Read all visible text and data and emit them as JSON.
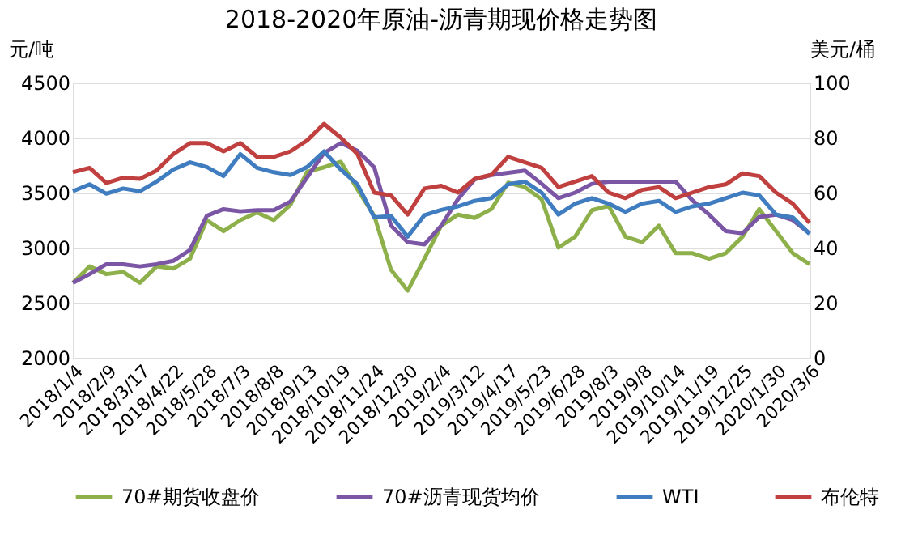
{
  "chart_data": {
    "type": "line",
    "title": "2018-2020年原油-沥青期现价格走势图",
    "ylabel": "元/吨",
    "y2label": "美元/桶",
    "x": [
      "2018-01-04",
      "2018-01-22",
      "2018-02-09",
      "2018-02-27",
      "2018-03-17",
      "2018-04-04",
      "2018-04-22",
      "2018-05-10",
      "2018-05-28",
      "2018-06-15",
      "2018-07-03",
      "2018-07-21",
      "2018-08-08",
      "2018-08-26",
      "2018-09-13",
      "2018-10-01",
      "2018-10-19",
      "2018-11-06",
      "2018-11-24",
      "2018-12-12",
      "2018-12-30",
      "2019-01-17",
      "2019-02-04",
      "2019-02-22",
      "2019-03-12",
      "2019-03-30",
      "2019-04-17",
      "2019-05-05",
      "2019-05-23",
      "2019-06-10",
      "2019-06-28",
      "2019-07-16",
      "2019-08-03",
      "2019-08-21",
      "2019-09-08",
      "2019-09-26",
      "2019-10-14",
      "2019-11-01",
      "2019-11-19",
      "2019-12-07",
      "2019-12-25",
      "2020-01-12",
      "2020-01-30",
      "2020-02-17",
      "2020-03-06"
    ],
    "series": [
      {
        "name": "70#期货收盘价",
        "color": "#8db04b",
        "values": [
          2680,
          2830,
          2760,
          2780,
          2680,
          2830,
          2810,
          2900,
          3250,
          3150,
          3250,
          3320,
          3250,
          3390,
          3690,
          3730,
          3780,
          3530,
          3290,
          2800,
          2610,
          2900,
          3200,
          3300,
          3270,
          3350,
          3590,
          3550,
          3440,
          3000,
          3100,
          3340,
          3380,
          3100,
          3050,
          3200,
          2950,
          2950,
          2900,
          2950,
          3100,
          3350,
          3150,
          2950,
          2850
        ]
      },
      {
        "name": "70#沥青现货均价",
        "color": "#7b56a5",
        "values": [
          2680,
          2760,
          2850,
          2850,
          2830,
          2850,
          2880,
          2980,
          3290,
          3350,
          3330,
          3340,
          3340,
          3420,
          3640,
          3860,
          3950,
          3880,
          3730,
          3200,
          3050,
          3030,
          3200,
          3440,
          3620,
          3660,
          3680,
          3700,
          3580,
          3450,
          3500,
          3580,
          3600,
          3600,
          3600,
          3600,
          3600,
          3430,
          3300,
          3150,
          3130,
          3280,
          3300,
          3250,
          3130
        ]
      },
      {
        "name": "WTI",
        "color": "#3f7cc0",
        "axis": "y2",
        "values": [
          60.5,
          63,
          59.6,
          61.5,
          60.5,
          64,
          68.4,
          71,
          69.3,
          66,
          74,
          69,
          67.4,
          66.4,
          69.3,
          75,
          68.4,
          63,
          51,
          51.5,
          44,
          51.8,
          53.7,
          55,
          57,
          58,
          63,
          64,
          60,
          52,
          56,
          58,
          56,
          53,
          56,
          57,
          53,
          55,
          56,
          58,
          60,
          59,
          52,
          51,
          45
        ]
      },
      {
        "name": "布伦特",
        "color": "#c0403f",
        "axis": "y2",
        "values": [
          67.4,
          69,
          63.5,
          65.4,
          65,
          68,
          74,
          78,
          78,
          75,
          78,
          73,
          73,
          75,
          79,
          85,
          80,
          74,
          60,
          59,
          52,
          61.5,
          62.5,
          60,
          65,
          66.5,
          73,
          71,
          69,
          62,
          64,
          66,
          60,
          58,
          61,
          62,
          58,
          60,
          62,
          63,
          67,
          66,
          60,
          56,
          49
        ]
      }
    ],
    "ylim": [
      2000,
      4500
    ],
    "yticks": [
      2000,
      2500,
      3000,
      3500,
      4000,
      4500
    ],
    "y2lim": [
      0,
      100
    ],
    "y2ticks": [
      0,
      20,
      40,
      60,
      80,
      100
    ],
    "xlim": [
      "2018-01-04",
      "2020-03-06"
    ],
    "xticks": [
      {
        "value": "2018-01-04",
        "label": "2018/1/4"
      },
      {
        "value": "2018-02-09",
        "label": "2018/2/9"
      },
      {
        "value": "2018-03-17",
        "label": "2018/3/17"
      },
      {
        "value": "2018-04-22",
        "label": "2018/4/22"
      },
      {
        "value": "2018-05-28",
        "label": "2018/5/28"
      },
      {
        "value": "2018-07-03",
        "label": "2018/7/3"
      },
      {
        "value": "2018-08-08",
        "label": "2018/8/8"
      },
      {
        "value": "2018-09-13",
        "label": "2018/9/13"
      },
      {
        "value": "2018-10-19",
        "label": "2018/10/19"
      },
      {
        "value": "2018-11-24",
        "label": "2018/11/24"
      },
      {
        "value": "2018-12-30",
        "label": "2018/12/30"
      },
      {
        "value": "2019-02-04",
        "label": "2019/2/4"
      },
      {
        "value": "2019-03-12",
        "label": "2019/3/12"
      },
      {
        "value": "2019-04-17",
        "label": "2019/4/17"
      },
      {
        "value": "2019-05-23",
        "label": "2019/5/23"
      },
      {
        "value": "2019-06-28",
        "label": "2019/6/28"
      },
      {
        "value": "2019-08-03",
        "label": "2019/8/3"
      },
      {
        "value": "2019-09-08",
        "label": "2019/9/8"
      },
      {
        "value": "2019-10-14",
        "label": "2019/10/14"
      },
      {
        "value": "2019-11-19",
        "label": "2019/11/19"
      },
      {
        "value": "2019-12-25",
        "label": "2019/12/25"
      },
      {
        "value": "2020-01-30",
        "label": "2020/1/30"
      },
      {
        "value": "2020-03-06",
        "label": "2020/3/6"
      }
    ],
    "grid": "y",
    "legend": "bottom"
  }
}
